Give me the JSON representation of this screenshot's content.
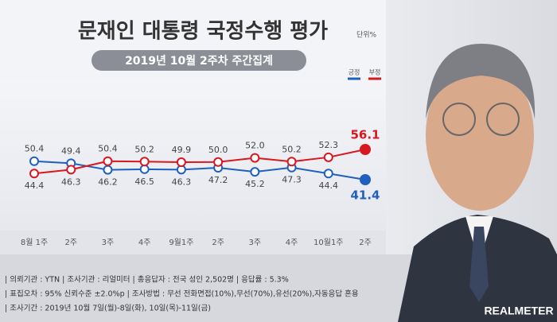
{
  "chart_data": {
    "type": "line",
    "title": "문재인 대통령 국정수행 평가",
    "unit": "단위%",
    "subtitle": "2019년 10월 2주차 주간집계",
    "categories": [
      "8월 1주",
      "2주",
      "3주",
      "4주",
      "9월1주",
      "2주",
      "3주",
      "4주",
      "10월1주",
      "2주"
    ],
    "series": [
      {
        "name": "긍정",
        "color": "#1f5fbf",
        "values": [
          50.4,
          49.4,
          46.2,
          46.5,
          46.3,
          47.2,
          45.2,
          47.3,
          44.4,
          41.4
        ],
        "value_labels": [
          "50.4",
          "49.4",
          "46.2",
          "46.5",
          "46.3",
          "47.2",
          "45.2",
          "47.3",
          "44.4",
          "41.4"
        ]
      },
      {
        "name": "부정",
        "color": "#d9171e",
        "values": [
          44.4,
          46.3,
          50.4,
          50.2,
          49.9,
          50.0,
          52.0,
          50.2,
          52.3,
          56.1
        ],
        "value_labels": [
          "44.4",
          "46.3",
          "50.4",
          "50.2",
          "49.9",
          "50.0",
          "52.0",
          "50.2",
          "52.3",
          "56.1"
        ]
      }
    ],
    "legend": "top-right"
  },
  "footer": [
    "| 의뢰기관 : YTN   | 조사기관 : 리얼미터   | 총응답자 : 전국 성인 2,502명   | 응답률 : 5.3%",
    "| 표집오차 : 95% 신뢰수준 ±2.0%p   | 조사방법 : 무선 전화면접(10%),무선(70%),유선(20%),자동응답 혼용",
    "| 조사기간 : 2019년 10월 7일(월)-8일(화), 10일(목)-11일(금)"
  ],
  "logo": "REALMETER"
}
